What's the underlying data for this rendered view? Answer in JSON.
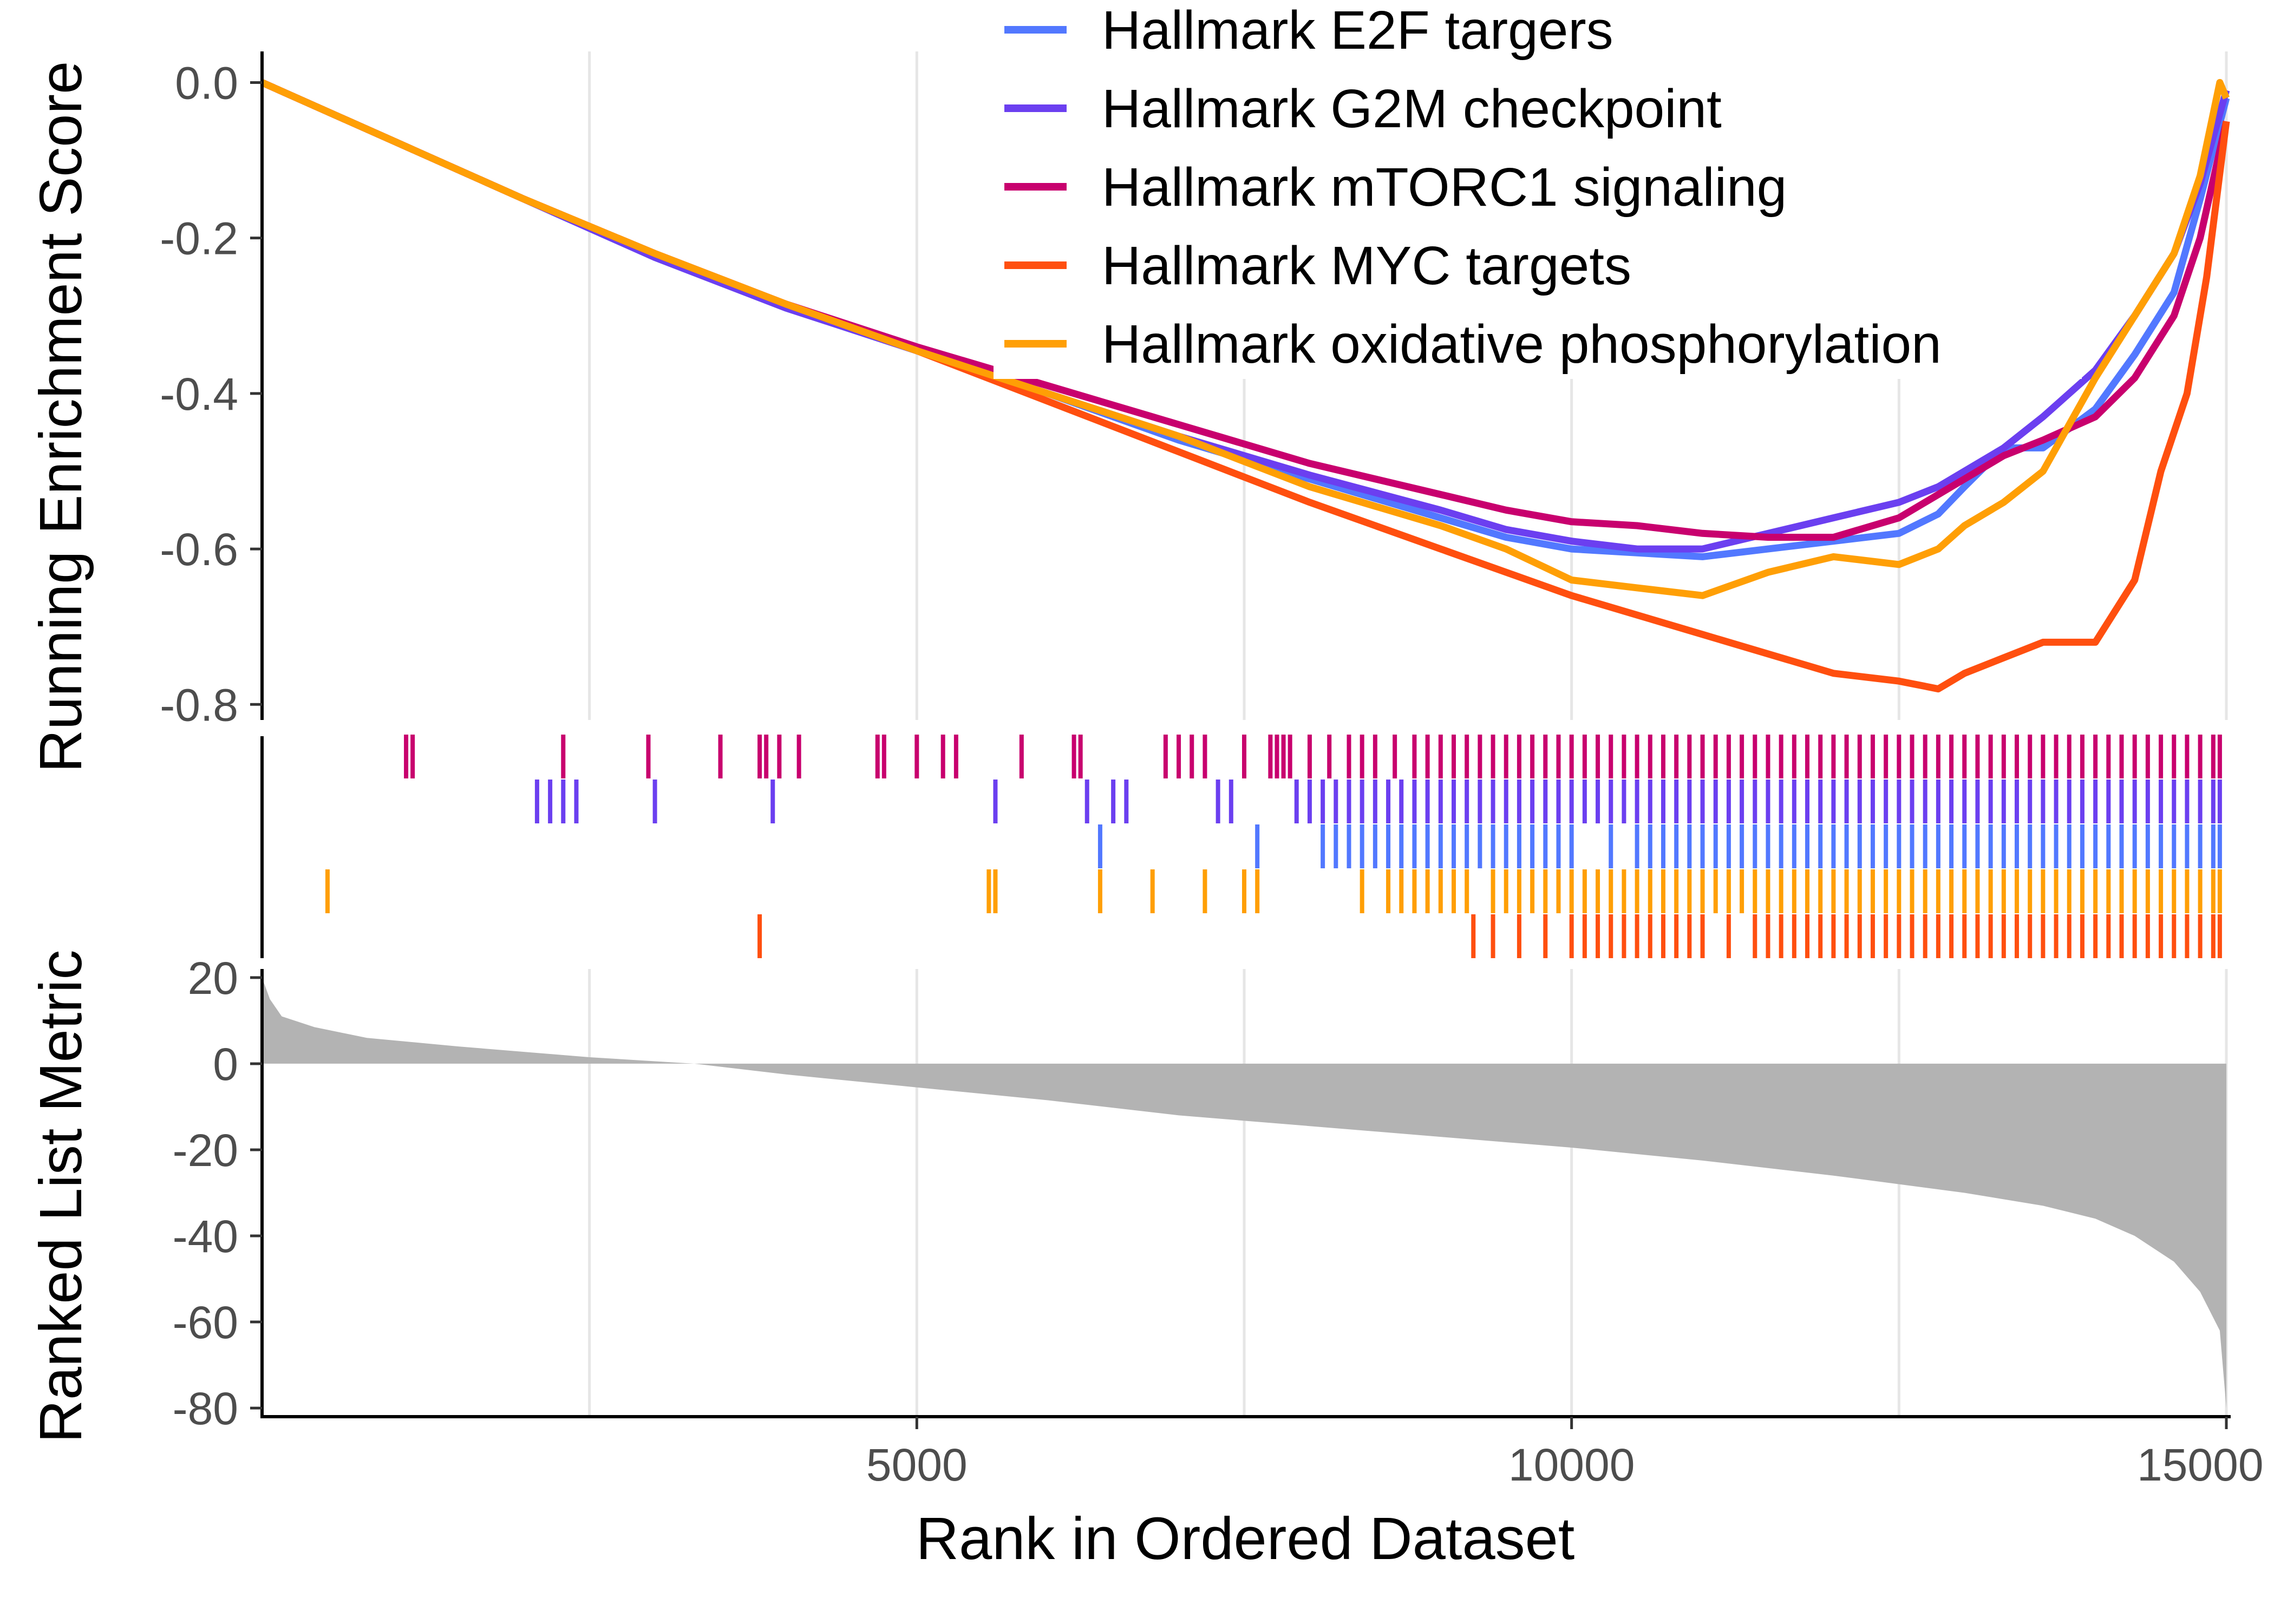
{
  "chart_data": {
    "type": "line",
    "xlabel": "Rank in Ordered Dataset",
    "xlim": [
      0,
      15000
    ],
    "x_ticks": [
      "5000",
      "10000",
      "15000"
    ],
    "x_tick_values": [
      5000,
      10000,
      15000
    ],
    "grid": "vertical",
    "legend_position": "top-right",
    "panels": [
      {
        "id": "running-enrichment",
        "ylabel": "Running Enrichment Score",
        "ylim": [
          -0.82,
          0.04
        ],
        "y_ticks": [
          "0.0",
          "-0.2",
          "-0.4",
          "-0.6",
          "-0.8"
        ],
        "y_tick_values": [
          0.0,
          -0.2,
          -0.4,
          -0.6,
          -0.8
        ]
      },
      {
        "id": "hit-markers",
        "ylabel": ""
      },
      {
        "id": "ranked-list-metric",
        "ylabel": "Ranked List Metric",
        "ylim": [
          -82,
          22
        ],
        "y_ticks": [
          "20",
          "0",
          "-20",
          "-40",
          "-60",
          "-80"
        ],
        "y_tick_values": [
          20,
          0,
          -20,
          -40,
          -60,
          -80
        ],
        "fill_color": "#b3b3b3",
        "x": [
          0,
          60,
          150,
          400,
          800,
          1500,
          2500,
          3300,
          4000,
          5000,
          6000,
          7000,
          8000,
          9000,
          10000,
          11000,
          12000,
          13000,
          13600,
          14000,
          14300,
          14600,
          14800,
          14950,
          15000
        ],
        "y": [
          20,
          15,
          11,
          8.5,
          6,
          4,
          1.5,
          0,
          -2.5,
          -5.5,
          -8.5,
          -12,
          -14.5,
          -17,
          -19.5,
          -22.5,
          -26,
          -30,
          -33,
          -36,
          -40,
          -46,
          -53,
          -62,
          -80
        ]
      }
    ],
    "series": [
      {
        "name": "Hallmark E2F targers",
        "color": "#5278ff",
        "x": [
          0,
          1000,
          2000,
          3000,
          4000,
          5000,
          6000,
          7000,
          8000,
          9000,
          9500,
          10000,
          10500,
          11000,
          11500,
          12000,
          12500,
          12800,
          13000,
          13300,
          13600,
          14000,
          14300,
          14600,
          14800,
          15000
        ],
        "y": [
          0,
          -0.075,
          -0.15,
          -0.225,
          -0.29,
          -0.345,
          -0.4,
          -0.46,
          -0.51,
          -0.56,
          -0.585,
          -0.6,
          -0.605,
          -0.61,
          -0.6,
          -0.59,
          -0.58,
          -0.555,
          -0.52,
          -0.47,
          -0.47,
          -0.42,
          -0.35,
          -0.27,
          -0.15,
          -0.02
        ],
        "hits": [
          6400,
          7600,
          8100,
          8200,
          8300,
          8400,
          8500,
          8600,
          8700,
          8800,
          8900,
          9000,
          9100,
          9200,
          9300,
          9400,
          9500,
          9600,
          9700,
          9800,
          9900,
          10000,
          10300,
          10500,
          10600,
          10700,
          10800,
          10900,
          11000,
          11100,
          11200,
          11300,
          11400,
          11500,
          11600,
          11700,
          11800,
          11900,
          12000,
          12100,
          12200,
          12300,
          12400,
          12500,
          12600,
          12700,
          12800,
          12900,
          13000,
          13100,
          13200,
          13300,
          13400,
          13500,
          13600,
          13700,
          13800,
          13900,
          14000,
          14100,
          14200,
          14300,
          14400,
          14500,
          14600,
          14700,
          14800,
          14900,
          14950
        ]
      },
      {
        "name": "Hallmark G2M checkpoint",
        "color": "#6b3ff0",
        "x": [
          0,
          1000,
          2000,
          3000,
          4000,
          5000,
          6000,
          7000,
          8000,
          9000,
          9500,
          10000,
          10500,
          11000,
          11500,
          12000,
          12500,
          12800,
          13000,
          13300,
          13600,
          14000,
          14300,
          14600,
          14800,
          15000
        ],
        "y": [
          0,
          -0.075,
          -0.15,
          -0.225,
          -0.29,
          -0.345,
          -0.4,
          -0.455,
          -0.505,
          -0.55,
          -0.575,
          -0.59,
          -0.6,
          -0.6,
          -0.58,
          -0.56,
          -0.54,
          -0.52,
          -0.5,
          -0.47,
          -0.43,
          -0.37,
          -0.3,
          -0.22,
          -0.13,
          -0.01
        ],
        "hits": [
          2100,
          2200,
          2300,
          2400,
          3000,
          3900,
          5600,
          6300,
          6500,
          6600,
          7300,
          7400,
          7900,
          8000,
          8100,
          8200,
          8300,
          8400,
          8500,
          8600,
          8700,
          8800,
          8900,
          9000,
          9100,
          9200,
          9300,
          9400,
          9500,
          9600,
          9700,
          9800,
          9900,
          10000,
          10100,
          10200,
          10300,
          10400,
          10500,
          10600,
          10700,
          10800,
          10900,
          11000,
          11100,
          11200,
          11300,
          11400,
          11500,
          11600,
          11700,
          11800,
          11900,
          12000,
          12100,
          12200,
          12300,
          12400,
          12500,
          12600,
          12700,
          12800,
          12900,
          13000,
          13100,
          13200,
          13300,
          13400,
          13500,
          13600,
          13700,
          13800,
          13900,
          14000,
          14100,
          14200,
          14300,
          14400,
          14500,
          14600,
          14700,
          14800,
          14900,
          14950
        ]
      },
      {
        "name": "Hallmark mTORC1 signaling",
        "color": "#c8006e",
        "x": [
          0,
          1000,
          2000,
          3000,
          4000,
          5000,
          6000,
          7000,
          8000,
          9000,
          9500,
          10000,
          10500,
          11000,
          11500,
          12000,
          12500,
          12800,
          13000,
          13300,
          13600,
          14000,
          14300,
          14600,
          14800,
          15000
        ],
        "y": [
          0,
          -0.075,
          -0.15,
          -0.22,
          -0.285,
          -0.34,
          -0.39,
          -0.44,
          -0.49,
          -0.53,
          -0.55,
          -0.565,
          -0.57,
          -0.58,
          -0.585,
          -0.585,
          -0.56,
          -0.53,
          -0.51,
          -0.48,
          -0.46,
          -0.43,
          -0.38,
          -0.3,
          -0.2,
          -0.05
        ],
        "hits": [
          1100,
          1150,
          2300,
          2950,
          3500,
          3800,
          3850,
          3950,
          4100,
          4700,
          4750,
          5000,
          5200,
          5300,
          5800,
          6200,
          6250,
          6900,
          7000,
          7100,
          7200,
          7500,
          7700,
          7750,
          7800,
          7850,
          8000,
          8150,
          8300,
          8400,
          8500,
          8650,
          8800,
          8900,
          9000,
          9100,
          9200,
          9300,
          9400,
          9500,
          9600,
          9700,
          9800,
          9900,
          10000,
          10100,
          10200,
          10300,
          10400,
          10500,
          10600,
          10700,
          10800,
          10900,
          11000,
          11100,
          11200,
          11300,
          11400,
          11500,
          11600,
          11700,
          11800,
          11900,
          12000,
          12100,
          12200,
          12300,
          12400,
          12500,
          12600,
          12700,
          12800,
          12900,
          13000,
          13100,
          13200,
          13300,
          13400,
          13500,
          13600,
          13700,
          13800,
          13900,
          14000,
          14100,
          14200,
          14300,
          14400,
          14500,
          14600,
          14700,
          14800,
          14900,
          14950
        ]
      },
      {
        "name": "Hallmark MYC targets",
        "color": "#ff4f0f",
        "x": [
          0,
          1000,
          2000,
          3000,
          4000,
          5000,
          6000,
          7000,
          8000,
          9000,
          10000,
          11000,
          12000,
          12500,
          12800,
          13000,
          13300,
          13600,
          14000,
          14300,
          14500,
          14700,
          14850,
          15000
        ],
        "y": [
          0,
          -0.075,
          -0.15,
          -0.22,
          -0.285,
          -0.345,
          -0.41,
          -0.475,
          -0.54,
          -0.6,
          -0.66,
          -0.71,
          -0.76,
          -0.77,
          -0.78,
          -0.76,
          -0.74,
          -0.72,
          -0.72,
          -0.64,
          -0.5,
          -0.4,
          -0.25,
          -0.05
        ],
        "hits": [
          3800,
          9250,
          9400,
          9600,
          9800,
          10000,
          10100,
          10200,
          10300,
          10400,
          10500,
          10600,
          10700,
          10800,
          10900,
          11000,
          11200,
          11400,
          11500,
          11600,
          11700,
          11800,
          11900,
          12000,
          12100,
          12200,
          12300,
          12400,
          12500,
          12600,
          12700,
          12800,
          12900,
          13000,
          13100,
          13200,
          13300,
          13400,
          13500,
          13600,
          13700,
          13800,
          13900,
          14000,
          14100,
          14200,
          14300,
          14400,
          14500,
          14600,
          14700,
          14800,
          14900,
          14950
        ]
      },
      {
        "name": "Hallmark oxidative phosphorylation",
        "color": "#ff9f05",
        "x": [
          0,
          1000,
          2000,
          3000,
          4000,
          5000,
          6000,
          7000,
          8000,
          9000,
          9500,
          10000,
          10500,
          11000,
          11500,
          12000,
          12500,
          12800,
          13000,
          13300,
          13600,
          14000,
          14300,
          14600,
          14800,
          14950,
          15000
        ],
        "y": [
          0,
          -0.075,
          -0.15,
          -0.22,
          -0.285,
          -0.345,
          -0.4,
          -0.455,
          -0.52,
          -0.57,
          -0.6,
          -0.64,
          -0.65,
          -0.66,
          -0.63,
          -0.61,
          -0.62,
          -0.6,
          -0.57,
          -0.54,
          -0.5,
          -0.38,
          -0.3,
          -0.22,
          -0.12,
          0.0,
          -0.02
        ],
        "hits": [
          500,
          5550,
          5600,
          6400,
          6800,
          7200,
          7500,
          7600,
          8400,
          8600,
          8700,
          8800,
          8900,
          9000,
          9100,
          9200,
          9400,
          9500,
          9600,
          9700,
          9800,
          9900,
          10000,
          10100,
          10200,
          10300,
          10400,
          10500,
          10600,
          10700,
          10800,
          10900,
          11000,
          11100,
          11200,
          11300,
          11400,
          11500,
          11600,
          11700,
          11800,
          11900,
          12000,
          12100,
          12200,
          12300,
          12400,
          12500,
          12600,
          12700,
          12800,
          12900,
          13000,
          13100,
          13200,
          13300,
          13400,
          13500,
          13600,
          13700,
          13800,
          13900,
          14000,
          14100,
          14200,
          14300,
          14400,
          14500,
          14600,
          14700,
          14800,
          14900,
          14950
        ]
      }
    ],
    "hit_rows_order": [
      "Hallmark mTORC1 signaling",
      "Hallmark G2M checkpoint",
      "Hallmark E2F targers",
      "Hallmark oxidative phosphorylation",
      "Hallmark MYC targets"
    ]
  }
}
